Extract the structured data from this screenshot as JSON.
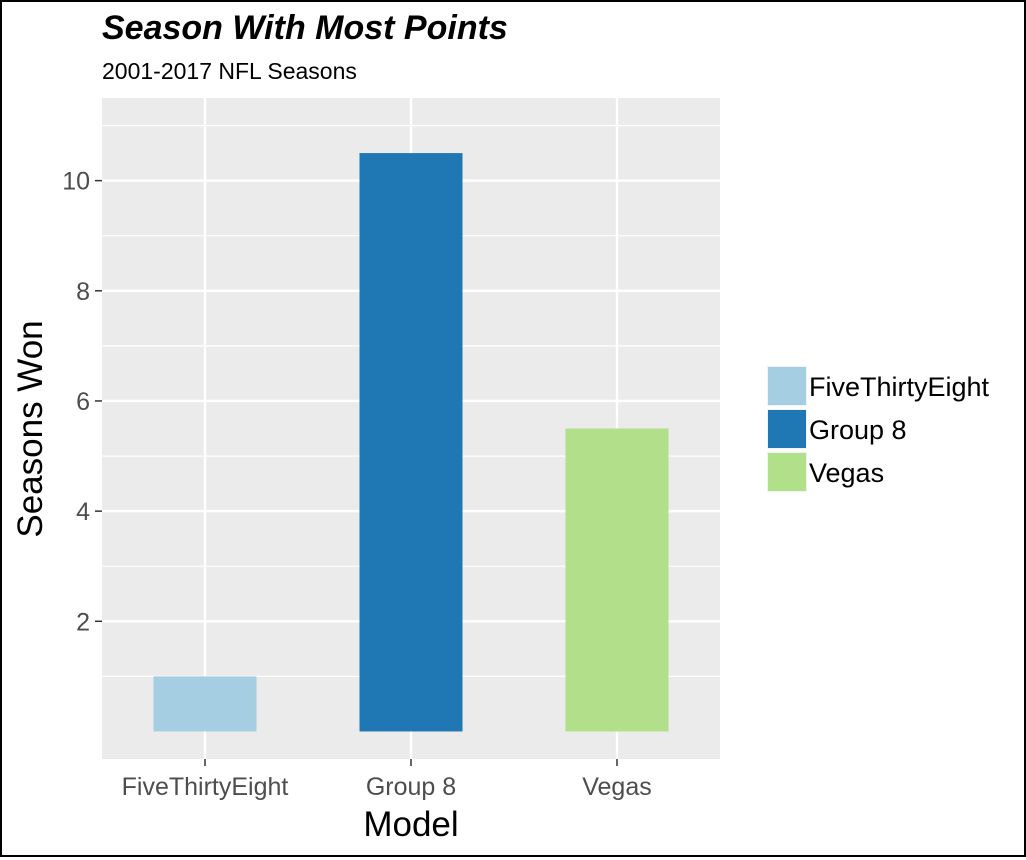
{
  "chart_data": {
    "type": "bar",
    "title": "Season With Most Points",
    "subtitle": "2001-2017 NFL Seasons",
    "xlabel": "Model",
    "ylabel": "Seasons Won",
    "categories": [
      "FiveThirtyEight",
      "Group 8",
      "Vegas"
    ],
    "values": [
      1,
      10.5,
      5.5
    ],
    "colors": [
      "#a6cee3",
      "#1f78b4",
      "#b2df8a"
    ],
    "yticks": [
      2,
      4,
      6,
      8,
      10
    ],
    "ylim": [
      -0.5,
      11.5
    ],
    "grid": true,
    "panel_background": "#ebebeb",
    "legend": {
      "position": "right",
      "entries": [
        "FiveThirtyEight",
        "Group 8",
        "Vegas"
      ]
    }
  }
}
